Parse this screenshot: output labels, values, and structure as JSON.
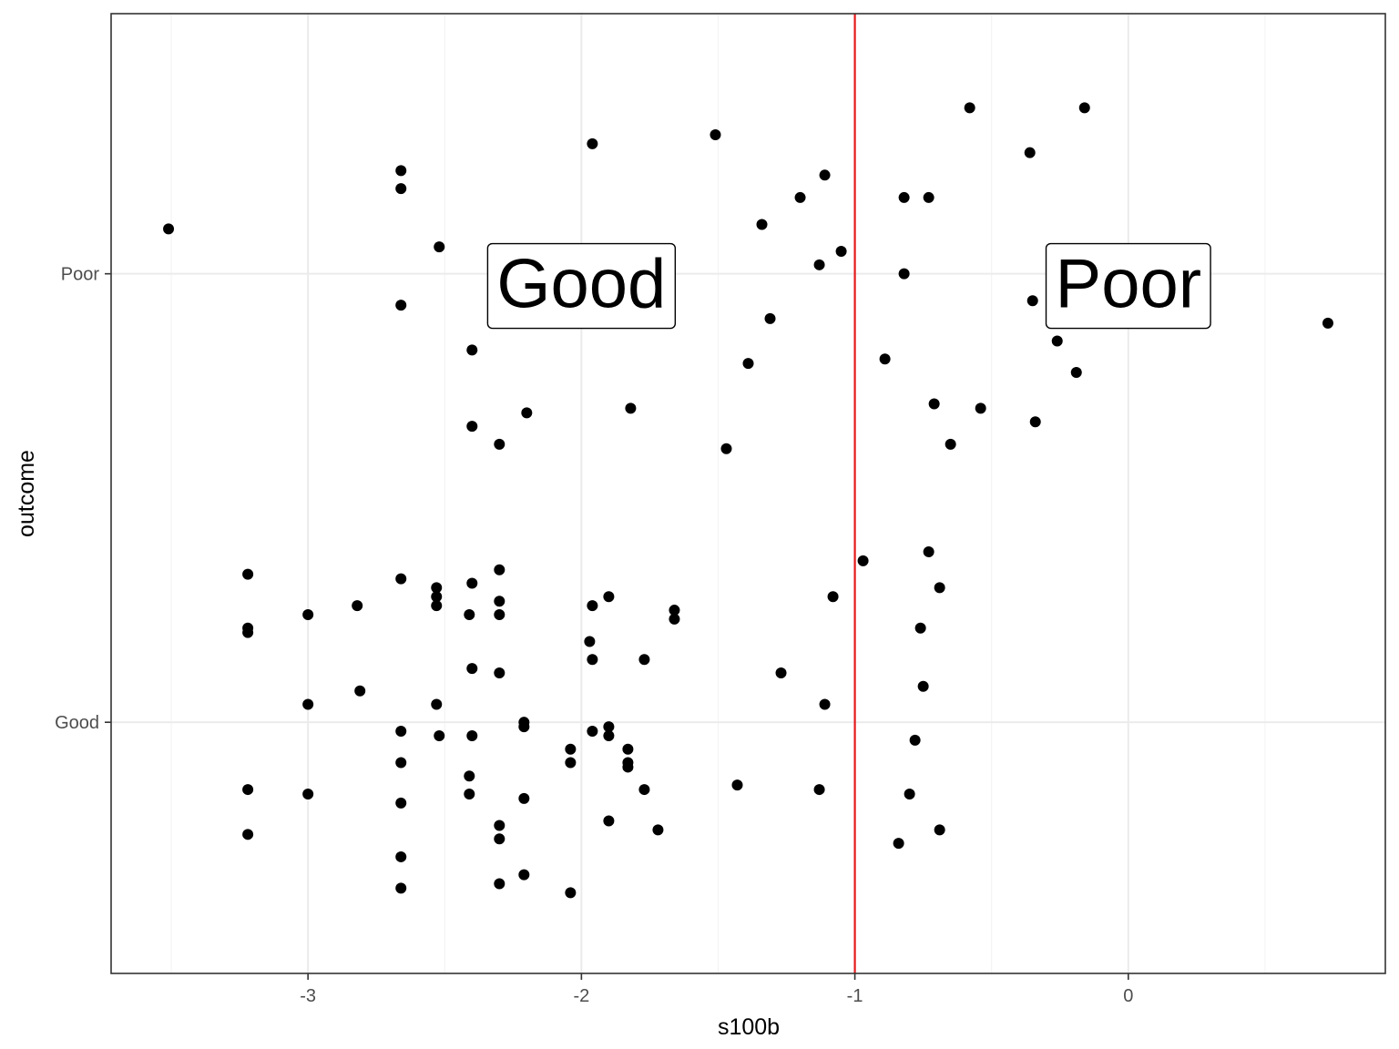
{
  "chart_data": {
    "type": "scatter",
    "xlabel": "s100b",
    "ylabel": "outcome",
    "x_ticks": [
      "-3",
      "-2",
      "-1",
      "0"
    ],
    "x_tick_values": [
      -3,
      -2,
      -1,
      0
    ],
    "y_categories": [
      "Good",
      "Poor"
    ],
    "xlim": [
      -3.72,
      0.94
    ],
    "ylim": [
      0.44,
      2.58
    ],
    "grid": true,
    "vline": {
      "x": -1,
      "color": "#e41a1c"
    },
    "annotations": [
      {
        "label": "Good",
        "x": -2.0,
        "y": 1.98
      },
      {
        "label": "Poor",
        "x": 0.0,
        "y": 1.98
      }
    ],
    "point_color": "#000000",
    "points": [
      [
        -3.51,
        2.1
      ],
      [
        -2.66,
        2.23
      ],
      [
        -2.66,
        2.19
      ],
      [
        -2.66,
        1.93
      ],
      [
        -2.52,
        2.06
      ],
      [
        -2.4,
        1.83
      ],
      [
        -2.4,
        1.66
      ],
      [
        -2.3,
        1.62
      ],
      [
        -2.2,
        1.69
      ],
      [
        -1.96,
        2.29
      ],
      [
        -1.82,
        1.7
      ],
      [
        -1.51,
        2.31
      ],
      [
        -1.47,
        1.61
      ],
      [
        -1.39,
        1.8
      ],
      [
        -1.34,
        2.11
      ],
      [
        -1.31,
        1.9
      ],
      [
        -1.2,
        2.17
      ],
      [
        -1.11,
        2.22
      ],
      [
        -1.13,
        2.02
      ],
      [
        -1.05,
        2.05
      ],
      [
        -0.89,
        1.81
      ],
      [
        -0.82,
        2.17
      ],
      [
        -0.82,
        2.0
      ],
      [
        -0.73,
        2.17
      ],
      [
        -0.71,
        1.71
      ],
      [
        -0.65,
        1.62
      ],
      [
        -0.58,
        2.37
      ],
      [
        -0.54,
        1.7
      ],
      [
        -0.36,
        2.27
      ],
      [
        -0.35,
        1.94
      ],
      [
        -0.34,
        1.67
      ],
      [
        -0.26,
        1.85
      ],
      [
        -0.19,
        1.78
      ],
      [
        -0.16,
        2.37
      ],
      [
        0.73,
        1.89
      ],
      [
        -3.22,
        1.33
      ],
      [
        -3.22,
        1.21
      ],
      [
        -3.22,
        1.2
      ],
      [
        -3.22,
        0.85
      ],
      [
        -3.22,
        0.75
      ],
      [
        -3.0,
        1.24
      ],
      [
        -3.0,
        1.04
      ],
      [
        -3.0,
        0.84
      ],
      [
        -2.82,
        1.26
      ],
      [
        -2.81,
        1.07
      ],
      [
        -2.66,
        1.32
      ],
      [
        -2.66,
        0.98
      ],
      [
        -2.66,
        0.91
      ],
      [
        -2.66,
        0.82
      ],
      [
        -2.66,
        0.7
      ],
      [
        -2.66,
        0.63
      ],
      [
        -2.53,
        1.3
      ],
      [
        -2.53,
        1.28
      ],
      [
        -2.53,
        1.26
      ],
      [
        -2.53,
        1.04
      ],
      [
        -2.52,
        0.97
      ],
      [
        -2.4,
        1.31
      ],
      [
        -2.41,
        1.24
      ],
      [
        -2.4,
        1.12
      ],
      [
        -2.4,
        0.97
      ],
      [
        -2.41,
        0.88
      ],
      [
        -2.41,
        0.84
      ],
      [
        -2.3,
        1.34
      ],
      [
        -2.3,
        1.27
      ],
      [
        -2.3,
        1.24
      ],
      [
        -2.3,
        1.11
      ],
      [
        -2.3,
        0.77
      ],
      [
        -2.3,
        0.74
      ],
      [
        -2.3,
        0.64
      ],
      [
        -2.21,
        1.0
      ],
      [
        -2.21,
        0.99
      ],
      [
        -2.21,
        0.83
      ],
      [
        -2.21,
        0.66
      ],
      [
        -2.04,
        0.94
      ],
      [
        -2.04,
        0.91
      ],
      [
        -2.04,
        0.62
      ],
      [
        -1.96,
        1.26
      ],
      [
        -1.97,
        1.18
      ],
      [
        -1.96,
        1.14
      ],
      [
        -1.96,
        0.98
      ],
      [
        -1.9,
        1.28
      ],
      [
        -1.9,
        0.99
      ],
      [
        -1.9,
        0.97
      ],
      [
        -1.9,
        0.78
      ],
      [
        -1.83,
        0.94
      ],
      [
        -1.83,
        0.91
      ],
      [
        -1.83,
        0.9
      ],
      [
        -1.77,
        1.14
      ],
      [
        -1.77,
        0.85
      ],
      [
        -1.72,
        0.76
      ],
      [
        -1.66,
        1.25
      ],
      [
        -1.66,
        1.23
      ],
      [
        -1.43,
        0.86
      ],
      [
        -1.27,
        1.11
      ],
      [
        -1.13,
        0.85
      ],
      [
        -1.11,
        1.04
      ],
      [
        -1.08,
        1.28
      ],
      [
        -0.97,
        1.36
      ],
      [
        -0.84,
        0.73
      ],
      [
        -0.8,
        0.84
      ],
      [
        -0.78,
        0.96
      ],
      [
        -0.76,
        1.21
      ],
      [
        -0.75,
        1.08
      ],
      [
        -0.73,
        1.38
      ],
      [
        -0.69,
        1.3
      ],
      [
        -0.69,
        0.76
      ]
    ]
  }
}
